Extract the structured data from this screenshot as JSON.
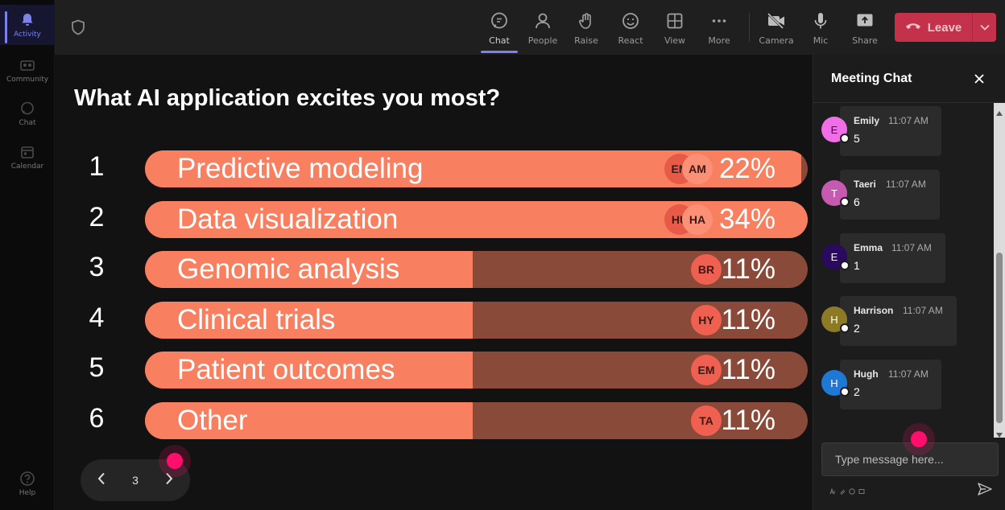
{
  "rail": {
    "items": [
      {
        "label": "Activity",
        "icon": "bell-icon",
        "active": true
      },
      {
        "label": "Community",
        "icon": "community-icon"
      },
      {
        "label": "Chat",
        "icon": "chat-icon"
      },
      {
        "label": "Calendar",
        "icon": "calendar-icon"
      },
      {
        "label": "Help",
        "icon": "help-icon"
      }
    ]
  },
  "toolbar": {
    "buttons": [
      {
        "label": "Chat",
        "icon": "chat-icon",
        "active": true
      },
      {
        "label": "People",
        "icon": "people-icon"
      },
      {
        "label": "Raise",
        "icon": "raise-hand-icon"
      },
      {
        "label": "React",
        "icon": "react-smiley-icon"
      },
      {
        "label": "View",
        "icon": "view-grid-icon"
      },
      {
        "label": "More",
        "icon": "more-dots-icon"
      },
      {
        "label": "Camera",
        "icon": "camera-off-icon"
      },
      {
        "label": "Mic",
        "icon": "mic-icon"
      },
      {
        "label": "Share",
        "icon": "share-icon"
      }
    ],
    "leave_label": "Leave",
    "leave_color": "#c4314b"
  },
  "poll": {
    "title": "What AI application excites you most?",
    "bar_color": "#f88060",
    "track_color": "#8a4a3a",
    "options": [
      {
        "num": "1",
        "label": "Predictive modeling",
        "pct": "22%",
        "fill": 0.99,
        "avatars": [
          "EM",
          "AM"
        ]
      },
      {
        "num": "2",
        "label": "Data visualization",
        "pct": "34%",
        "fill": 1.0,
        "avatars": [
          "HU",
          "HA"
        ]
      },
      {
        "num": "3",
        "label": "Genomic analysis",
        "pct": "11%",
        "fill": 0.495,
        "avatars": [
          "BR"
        ]
      },
      {
        "num": "4",
        "label": "Clinical trials",
        "pct": "11%",
        "fill": 0.495,
        "avatars": [
          "HY"
        ]
      },
      {
        "num": "5",
        "label": "Patient outcomes",
        "pct": "11%",
        "fill": 0.495,
        "avatars": [
          "EM"
        ]
      },
      {
        "num": "6",
        "label": "Other",
        "pct": "11%",
        "fill": 0.495,
        "avatars": [
          "TA"
        ]
      }
    ]
  },
  "pager": {
    "page": "3"
  },
  "chat": {
    "title": "Meeting Chat",
    "placeholder": "Type message here...",
    "messages": [
      {
        "initial": "E",
        "name": "Emily",
        "time": "11:07 AM",
        "text": "5",
        "avatar_color": "#f06ee6",
        "avatar_text_color": "#3a0a36"
      },
      {
        "initial": "T",
        "name": "Taeri",
        "time": "11:07 AM",
        "text": "6",
        "avatar_color": "#c659b0",
        "avatar_text_color": "#ffffff"
      },
      {
        "initial": "E",
        "name": "Emma",
        "time": "11:07 AM",
        "text": "1",
        "avatar_color": "#2a0a5c",
        "avatar_text_color": "#ffffff"
      },
      {
        "initial": "H",
        "name": "Harrison",
        "time": "11:07 AM",
        "text": "2",
        "avatar_color": "#8c7a24",
        "avatar_text_color": "#ffffff"
      },
      {
        "initial": "H",
        "name": "Hugh",
        "time": "11:07 AM",
        "text": "2",
        "avatar_color": "#1e78d4",
        "avatar_text_color": "#ffffff"
      }
    ]
  }
}
